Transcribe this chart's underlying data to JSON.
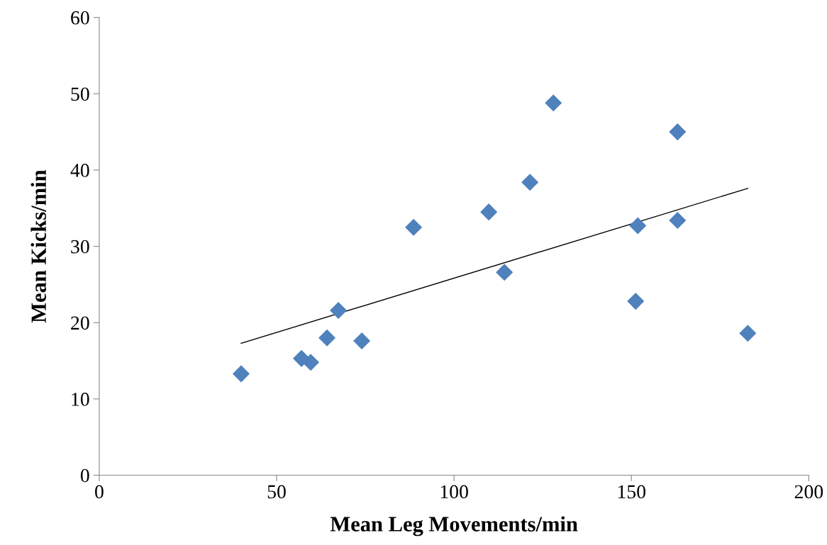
{
  "chart_data": {
    "type": "scatter",
    "xlabel": "Mean Leg Movements/min",
    "ylabel": "Mean Kicks/min",
    "xlim": [
      0,
      200
    ],
    "xticks": [
      0,
      50,
      100,
      150,
      200
    ],
    "ylim": [
      0,
      60
    ],
    "yticks": [
      0,
      10,
      20,
      30,
      40,
      50,
      60
    ],
    "grid": false,
    "marker": "diamond",
    "series": [
      {
        "color": "#4f81bd",
        "x": [
          40,
          57,
          59.6,
          64.2,
          67.4,
          74,
          88.6,
          109.8,
          114.2,
          121.4,
          128,
          151.8,
          151.2,
          163,
          163,
          182.8
        ],
        "values": [
          13.3,
          15.3,
          14.8,
          18.0,
          21.6,
          17.6,
          32.5,
          34.5,
          26.6,
          38.4,
          48.8,
          32.7,
          22.8,
          45.0,
          33.4,
          18.6
        ]
      },
      {
        "type": "line",
        "color": "#000000",
        "marker": "none",
        "x": [
          40,
          182.8
        ],
        "values": [
          17.3,
          37.6
        ]
      }
    ]
  }
}
